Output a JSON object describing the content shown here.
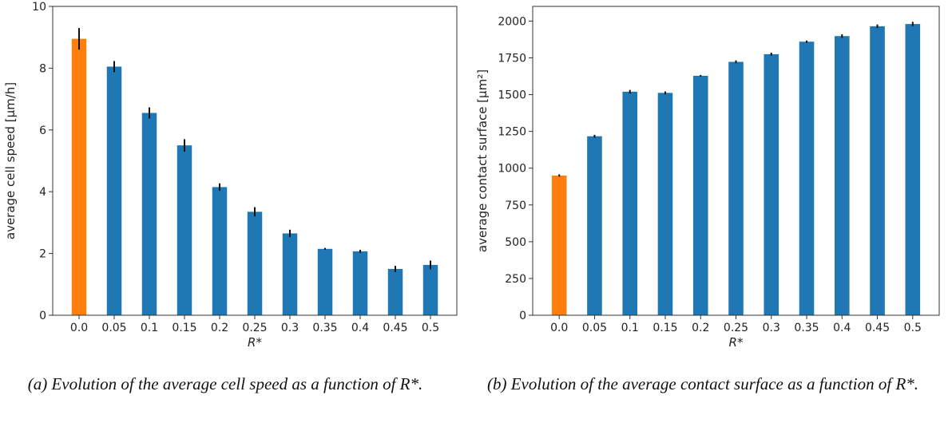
{
  "chart_data": [
    {
      "type": "bar",
      "categories": [
        "0.0",
        "0.05",
        "0.1",
        "0.15",
        "0.2",
        "0.25",
        "0.3",
        "0.35",
        "0.4",
        "0.45",
        "0.5"
      ],
      "values": [
        8.95,
        8.05,
        6.55,
        5.5,
        4.15,
        3.35,
        2.65,
        2.15,
        2.07,
        1.5,
        1.63
      ],
      "errors": [
        0.35,
        0.18,
        0.18,
        0.2,
        0.12,
        0.15,
        0.12,
        0.03,
        0.05,
        0.1,
        0.14
      ],
      "bar_colors": [
        "#ff7f0e",
        "#1f77b4",
        "#1f77b4",
        "#1f77b4",
        "#1f77b4",
        "#1f77b4",
        "#1f77b4",
        "#1f77b4",
        "#1f77b4",
        "#1f77b4",
        "#1f77b4"
      ],
      "xlabel": "R*",
      "ylabel": "average cell speed [μm/h]",
      "ylim": [
        0,
        10
      ],
      "yticks": [
        "0",
        "2",
        "4",
        "6",
        "8",
        "10"
      ],
      "grid": false
    },
    {
      "type": "bar",
      "categories": [
        "0.0",
        "0.05",
        "0.1",
        "0.15",
        "0.2",
        "0.25",
        "0.3",
        "0.35",
        "0.4",
        "0.45",
        "0.5"
      ],
      "values": [
        950,
        1217,
        1520,
        1512,
        1628,
        1723,
        1775,
        1860,
        1898,
        1965,
        1980
      ],
      "errors": [
        8,
        10,
        12,
        10,
        6,
        10,
        10,
        8,
        12,
        12,
        15
      ],
      "bar_colors": [
        "#ff7f0e",
        "#1f77b4",
        "#1f77b4",
        "#1f77b4",
        "#1f77b4",
        "#1f77b4",
        "#1f77b4",
        "#1f77b4",
        "#1f77b4",
        "#1f77b4",
        "#1f77b4"
      ],
      "xlabel": "R*",
      "ylabel": "average contact surface [μm²]",
      "ylim": [
        0,
        2100
      ],
      "yticks": [
        "0",
        "250",
        "500",
        "750",
        "1000",
        "1250",
        "1500",
        "1750",
        "2000"
      ],
      "grid": false
    }
  ],
  "captions": {
    "a": "(a) Evolution of the average cell speed as a function of R*.",
    "b": "(b) Evolution of the average contact surface as a function of R*."
  }
}
